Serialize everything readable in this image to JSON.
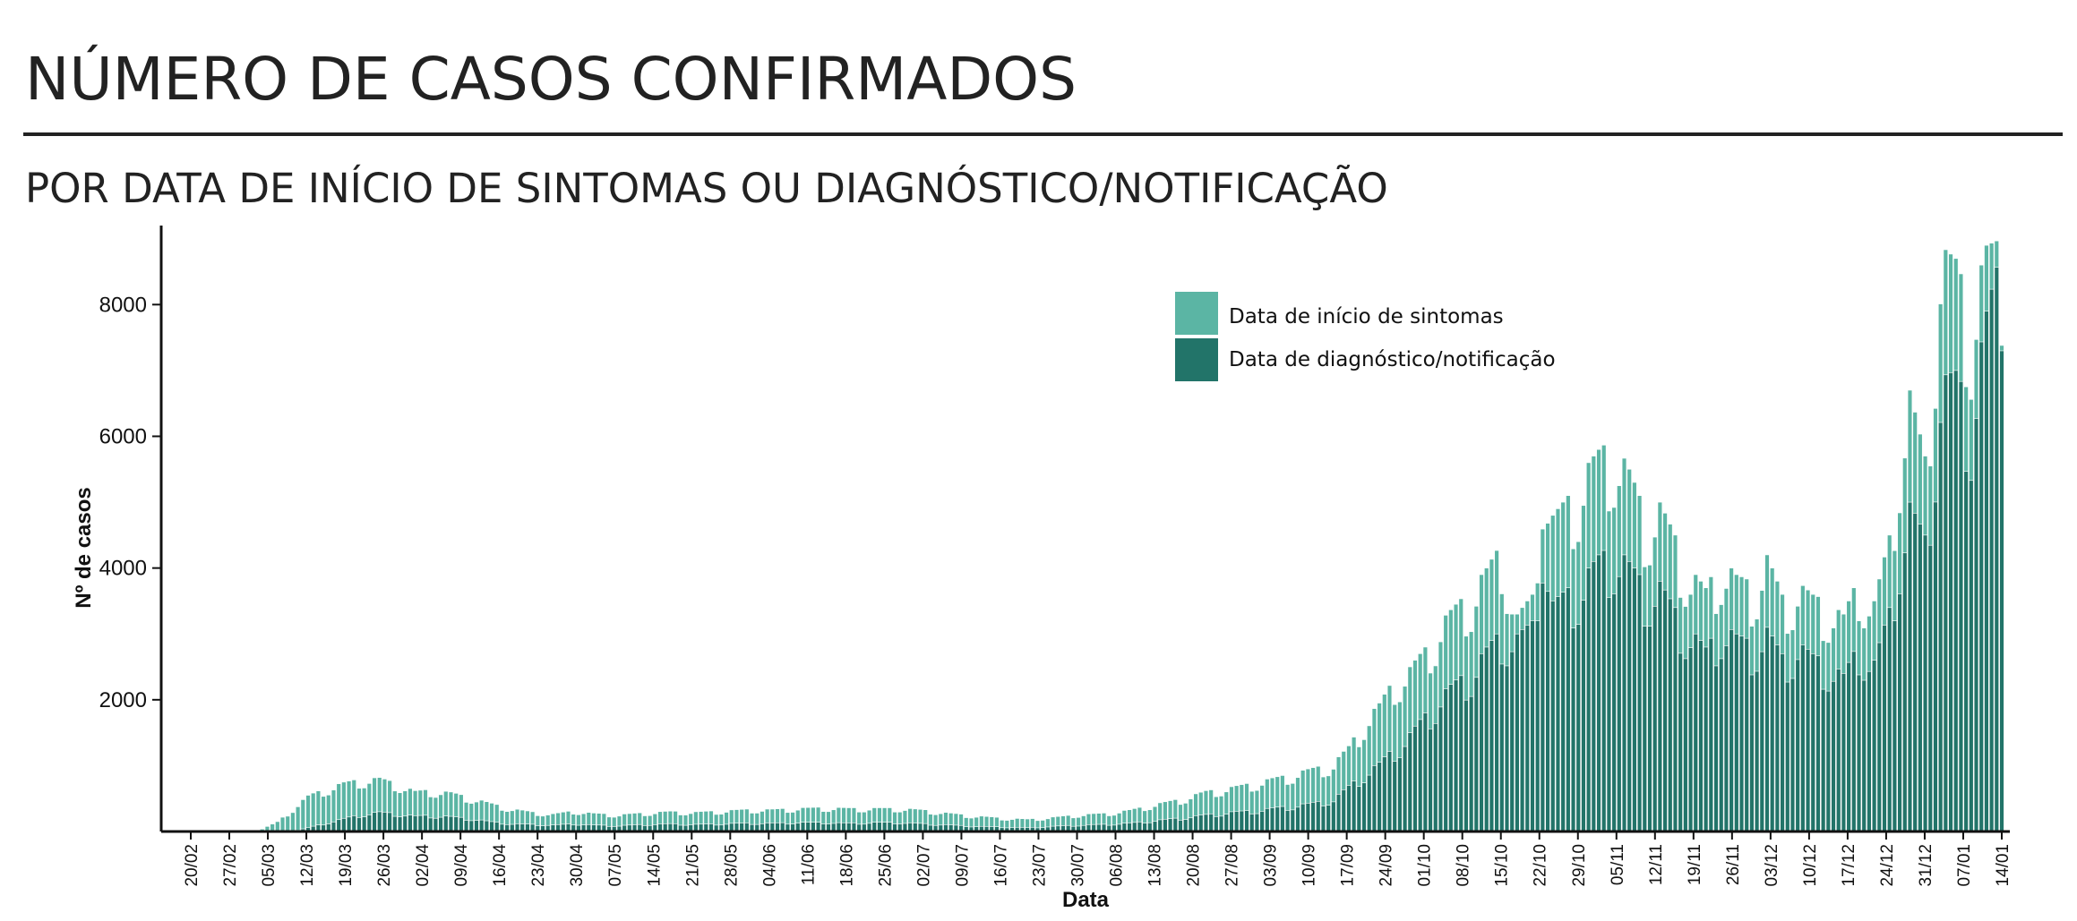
{
  "header": {
    "title": "NÚMERO DE CASOS CONFIRMADOS",
    "subtitle": "POR DATA DE INÍCIO DE SINTOMAS OU DIAGNÓSTICO/NOTIFICAÇÃO"
  },
  "colors": {
    "symptoms": "#5bb5a4",
    "diagnosis": "#227469",
    "axis": "#111111"
  },
  "chart_data": {
    "type": "bar",
    "stacking": "overlapping",
    "xlabel": "Data",
    "ylabel": "Nº de casos",
    "ylim": [
      0,
      9200
    ],
    "yticks": [
      2000,
      4000,
      6000,
      8000
    ],
    "xticks": [
      "20/02",
      "27/02",
      "05/03",
      "12/03",
      "19/03",
      "26/03",
      "02/04",
      "09/04",
      "16/04",
      "23/04",
      "30/04",
      "07/05",
      "14/05",
      "21/05",
      "28/05",
      "04/06",
      "11/06",
      "18/06",
      "25/06",
      "02/07",
      "09/07",
      "16/07",
      "23/07",
      "30/07",
      "06/08",
      "13/08",
      "20/08",
      "27/08",
      "03/09",
      "10/09",
      "17/09",
      "24/09",
      "01/10",
      "08/10",
      "15/10",
      "22/10",
      "29/10",
      "05/11",
      "12/11",
      "19/11",
      "26/11",
      "03/12",
      "10/12",
      "17/12",
      "24/12",
      "31/12",
      "07/01",
      "14/01"
    ],
    "grid": false,
    "legend_position": "top-right",
    "series": [
      {
        "name": "Data de início de sintomas",
        "anchors": [
          [
            0,
            0
          ],
          [
            13,
            0
          ],
          [
            14,
            40
          ],
          [
            17,
            150
          ],
          [
            20,
            350
          ],
          [
            23,
            550
          ],
          [
            26,
            650
          ],
          [
            30,
            750
          ],
          [
            33,
            800
          ],
          [
            37,
            820
          ],
          [
            40,
            750
          ],
          [
            44,
            620
          ],
          [
            47,
            640
          ],
          [
            51,
            600
          ],
          [
            55,
            520
          ],
          [
            59,
            430
          ],
          [
            63,
            350
          ],
          [
            67,
            300
          ],
          [
            71,
            270
          ],
          [
            75,
            320
          ],
          [
            79,
            280
          ],
          [
            84,
            260
          ],
          [
            89,
            290
          ],
          [
            94,
            310
          ],
          [
            99,
            300
          ],
          [
            104,
            320
          ],
          [
            109,
            340
          ],
          [
            114,
            340
          ],
          [
            119,
            360
          ],
          [
            124,
            370
          ],
          [
            129,
            360
          ],
          [
            134,
            360
          ],
          [
            139,
            360
          ],
          [
            144,
            330
          ],
          [
            149,
            280
          ],
          [
            154,
            240
          ],
          [
            159,
            210
          ],
          [
            164,
            190
          ],
          [
            169,
            220
          ],
          [
            174,
            260
          ],
          [
            179,
            280
          ],
          [
            184,
            330
          ],
          [
            189,
            420
          ],
          [
            194,
            500
          ],
          [
            199,
            620
          ],
          [
            204,
            680
          ],
          [
            209,
            760
          ],
          [
            214,
            850
          ],
          [
            219,
            950
          ],
          [
            224,
            1050
          ],
          [
            227,
            1300
          ],
          [
            230,
            1700
          ],
          [
            233,
            1950
          ],
          [
            236,
            2350
          ],
          [
            239,
            2500
          ],
          [
            242,
            2800
          ],
          [
            245,
            3200
          ],
          [
            248,
            3450
          ],
          [
            251,
            3700
          ],
          [
            254,
            4000
          ],
          [
            257,
            4400
          ],
          [
            260,
            3300
          ],
          [
            263,
            3600
          ],
          [
            265,
            5600
          ],
          [
            267,
            4800
          ],
          [
            270,
            5100
          ],
          [
            273,
            5500
          ],
          [
            276,
            5800
          ],
          [
            279,
            6000
          ],
          [
            282,
            5500
          ],
          [
            285,
            4900
          ],
          [
            288,
            5000
          ],
          [
            291,
            4500
          ],
          [
            294,
            4000
          ],
          [
            297,
            3700
          ],
          [
            300,
            4200
          ],
          [
            303,
            3900
          ],
          [
            306,
            3800
          ],
          [
            309,
            4200
          ],
          [
            312,
            3600
          ],
          [
            315,
            3800
          ],
          [
            318,
            3600
          ],
          [
            321,
            3500
          ],
          [
            324,
            3300
          ],
          [
            327,
            3900
          ],
          [
            330,
            3500
          ],
          [
            333,
            4500
          ],
          [
            335,
            5900
          ],
          [
            337,
            6700
          ],
          [
            340,
            5700
          ],
          [
            343,
            8900
          ],
          [
            346,
            8700
          ],
          [
            349,
            8000
          ],
          [
            352,
            8900
          ],
          [
            355,
            9000
          ]
        ]
      },
      {
        "name": "Data de diagnóstico/notificação",
        "anchors": [
          [
            0,
            0
          ],
          [
            20,
            0
          ],
          [
            23,
            60
          ],
          [
            26,
            120
          ],
          [
            30,
            200
          ],
          [
            33,
            260
          ],
          [
            37,
            300
          ],
          [
            40,
            280
          ],
          [
            44,
            240
          ],
          [
            47,
            250
          ],
          [
            51,
            230
          ],
          [
            55,
            200
          ],
          [
            59,
            150
          ],
          [
            63,
            120
          ],
          [
            67,
            110
          ],
          [
            71,
            100
          ],
          [
            75,
            120
          ],
          [
            79,
            100
          ],
          [
            84,
            90
          ],
          [
            89,
            110
          ],
          [
            94,
            120
          ],
          [
            99,
            110
          ],
          [
            104,
            120
          ],
          [
            109,
            130
          ],
          [
            114,
            130
          ],
          [
            119,
            140
          ],
          [
            124,
            140
          ],
          [
            129,
            130
          ],
          [
            134,
            140
          ],
          [
            139,
            140
          ],
          [
            144,
            120
          ],
          [
            149,
            100
          ],
          [
            154,
            80
          ],
          [
            159,
            70
          ],
          [
            164,
            60
          ],
          [
            169,
            80
          ],
          [
            174,
            100
          ],
          [
            179,
            110
          ],
          [
            184,
            130
          ],
          [
            189,
            170
          ],
          [
            194,
            210
          ],
          [
            199,
            260
          ],
          [
            204,
            300
          ],
          [
            209,
            330
          ],
          [
            214,
            380
          ],
          [
            219,
            430
          ],
          [
            224,
            500
          ],
          [
            227,
            700
          ],
          [
            230,
            900
          ],
          [
            233,
            1050
          ],
          [
            236,
            1300
          ],
          [
            239,
            1500
          ],
          [
            242,
            1800
          ],
          [
            245,
            2100
          ],
          [
            248,
            2300
          ],
          [
            251,
            2500
          ],
          [
            254,
            2800
          ],
          [
            257,
            3100
          ],
          [
            260,
            3000
          ],
          [
            263,
            3200
          ],
          [
            265,
            4600
          ],
          [
            267,
            3500
          ],
          [
            270,
            3700
          ],
          [
            273,
            3900
          ],
          [
            276,
            4200
          ],
          [
            279,
            4400
          ],
          [
            282,
            4100
          ],
          [
            285,
            3800
          ],
          [
            288,
            3800
          ],
          [
            291,
            3400
          ],
          [
            294,
            3100
          ],
          [
            297,
            2800
          ],
          [
            300,
            3200
          ],
          [
            303,
            3000
          ],
          [
            306,
            2900
          ],
          [
            309,
            3100
          ],
          [
            312,
            2700
          ],
          [
            315,
            2900
          ],
          [
            318,
            2700
          ],
          [
            321,
            2600
          ],
          [
            324,
            2400
          ],
          [
            327,
            2900
          ],
          [
            330,
            2600
          ],
          [
            333,
            3400
          ],
          [
            335,
            4400
          ],
          [
            337,
            5000
          ],
          [
            340,
            4500
          ],
          [
            343,
            6900
          ],
          [
            346,
            7000
          ],
          [
            349,
            6500
          ],
          [
            352,
            7900
          ],
          [
            355,
            8900
          ]
        ]
      }
    ]
  }
}
